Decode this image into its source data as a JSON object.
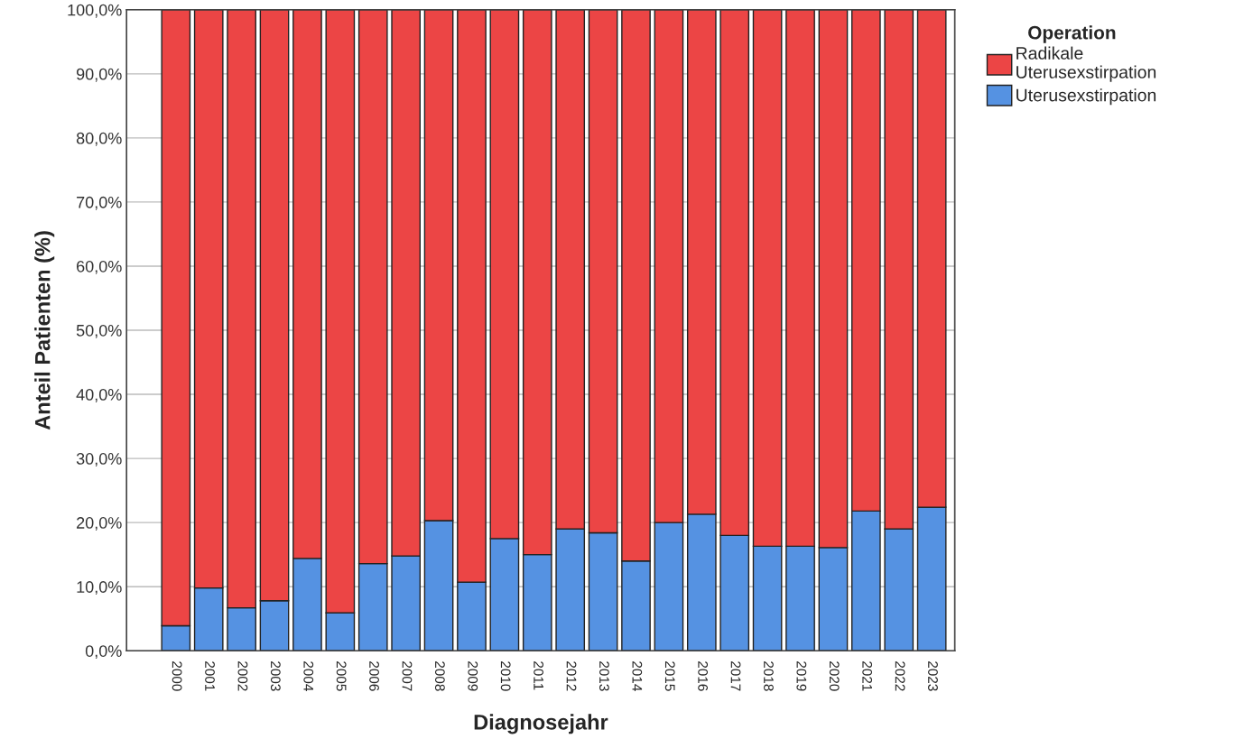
{
  "chart_data": {
    "type": "bar",
    "stacked": true,
    "xlabel": "Diagnosejahr",
    "ylabel": "Anteil Patienten (%)",
    "legend_title": "Operation",
    "legend": "top right",
    "categories": [
      "2000",
      "2001",
      "2002",
      "2003",
      "2004",
      "2005",
      "2006",
      "2007",
      "2008",
      "2009",
      "2010",
      "2011",
      "2012",
      "2013",
      "2014",
      "2015",
      "2016",
      "2017",
      "2018",
      "2019",
      "2020",
      "2021",
      "2022",
      "2023"
    ],
    "series": [
      {
        "name": "Uterusexstirpation",
        "color": "#5592e2",
        "values": [
          3.9,
          9.8,
          6.7,
          7.8,
          14.4,
          5.9,
          13.6,
          14.8,
          20.3,
          10.7,
          17.5,
          15.0,
          19.0,
          18.4,
          14.0,
          20.0,
          21.3,
          18.0,
          16.3,
          16.3,
          16.1,
          21.8,
          19.0,
          22.4
        ]
      },
      {
        "name": "Radikale\nUterusexstirpation",
        "color": "#ec4545",
        "values": [
          96.1,
          90.2,
          93.3,
          92.2,
          85.6,
          94.1,
          86.4,
          85.2,
          79.7,
          89.3,
          82.5,
          85.0,
          81.0,
          81.6,
          86.0,
          80.0,
          78.7,
          82.0,
          83.7,
          83.7,
          83.9,
          78.2,
          81.0,
          77.6
        ]
      }
    ],
    "ylim": [
      0,
      100
    ],
    "yticks": [
      {
        "value": 0,
        "label": "0,0%"
      },
      {
        "value": 10,
        "label": "10,0%"
      },
      {
        "value": 20,
        "label": "20,0%"
      },
      {
        "value": 30,
        "label": "30,0%"
      },
      {
        "value": 40,
        "label": "40,0%"
      },
      {
        "value": 50,
        "label": "50,0%"
      },
      {
        "value": 60,
        "label": "60,0%"
      },
      {
        "value": 70,
        "label": "70,0%"
      },
      {
        "value": 80,
        "label": "80,0%"
      },
      {
        "value": 90,
        "label": "90,0%"
      },
      {
        "value": 100,
        "label": "100,0%"
      }
    ],
    "grid": "y"
  }
}
